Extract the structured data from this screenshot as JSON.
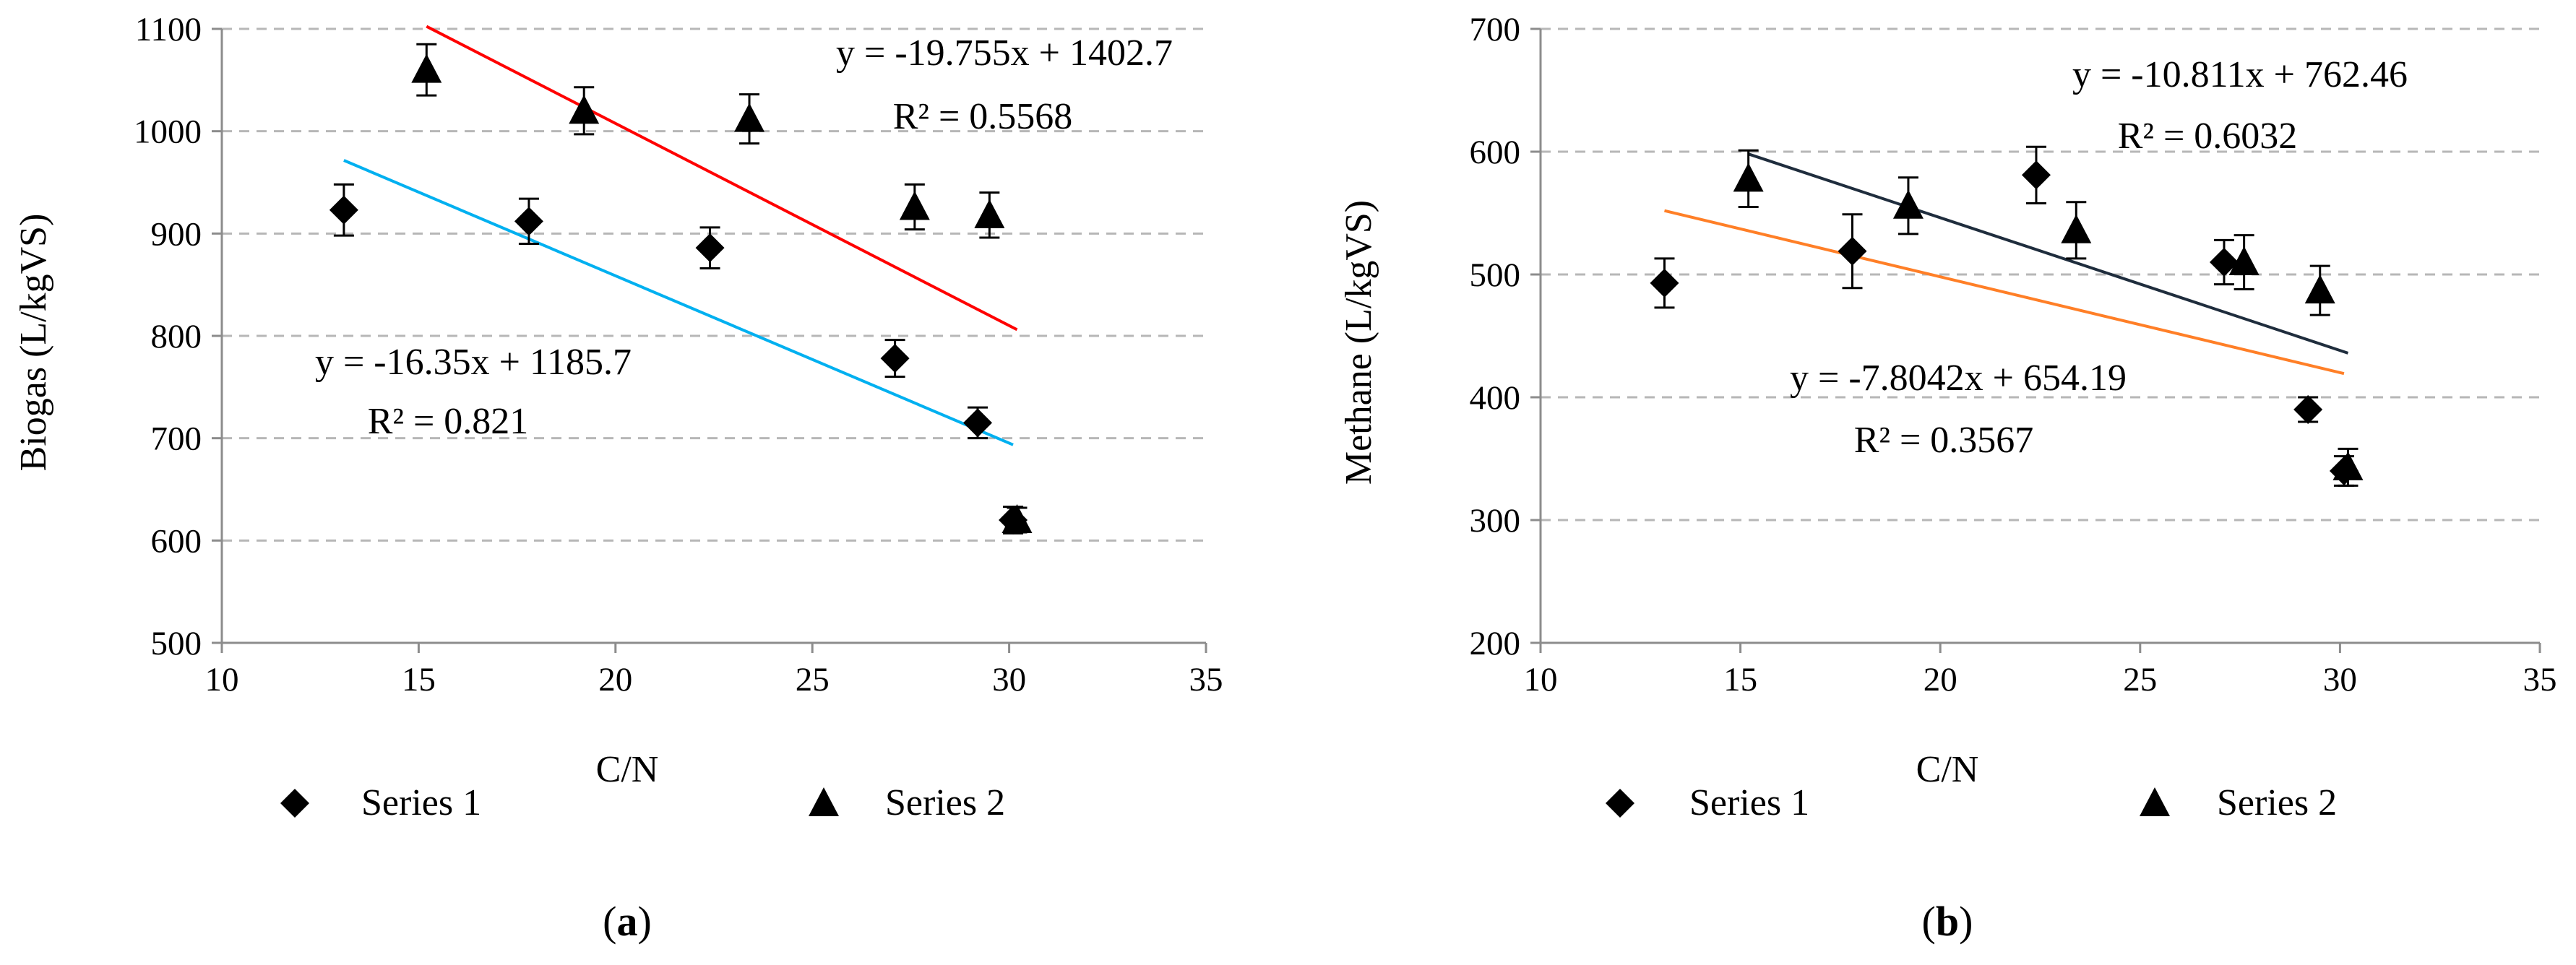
{
  "chart_data": [
    {
      "type": "scatter",
      "panel_caption": {
        "open": "(",
        "letter": "a",
        "close": ")"
      },
      "xlabel": "C/N",
      "ylabel": "Biogas (L/kgVS)",
      "xlim": [
        10,
        35
      ],
      "ylim": [
        500,
        1100
      ],
      "xticks": [
        10,
        15,
        20,
        25,
        30,
        35
      ],
      "yticks": [
        500,
        600,
        700,
        800,
        900,
        1000,
        1100
      ],
      "grid": "horizontal dashed",
      "series": [
        {
          "name": "Series 1",
          "marker": "diamond",
          "x": [
            13.1,
            17.8,
            22.4,
            27.1,
            29.2,
            30.1
          ],
          "y": [
            923,
            912,
            886,
            778,
            715,
            620
          ],
          "err": [
            25,
            22,
            20,
            18,
            15,
            13
          ]
        },
        {
          "name": "Series 2",
          "marker": "triangle",
          "x": [
            15.2,
            19.2,
            23.4,
            27.6,
            29.5,
            30.2
          ],
          "y": [
            1060,
            1020,
            1012,
            926,
            918,
            620
          ],
          "err": [
            25,
            23,
            24,
            22,
            22,
            12
          ]
        }
      ],
      "trendlines": [
        {
          "series": "Series 1",
          "color": "#00b0f0",
          "slope": -16.35,
          "intercept": 1185.7,
          "x_range": [
            13.1,
            30.1
          ],
          "equation": "y = -16.35x + 1185.7",
          "r2": "R² = 0.821"
        },
        {
          "series": "Series 2",
          "color": "#ff0000",
          "slope": -19.755,
          "intercept": 1402.7,
          "x_range": [
            15.2,
            30.2
          ],
          "equation": "y = -19.755x + 1402.7",
          "r2": "R² = 0.5568"
        }
      ],
      "legend": {
        "placement": "bottom"
      }
    },
    {
      "type": "scatter",
      "panel_caption": {
        "open": "(",
        "letter": "b",
        "close": ")"
      },
      "xlabel": "C/N",
      "ylabel": "Methane (L/kgVS)",
      "xlim": [
        10,
        35
      ],
      "ylim": [
        200,
        700
      ],
      "xticks": [
        10,
        15,
        20,
        25,
        30,
        35
      ],
      "yticks": [
        200,
        300,
        400,
        500,
        600,
        700
      ],
      "grid": "horizontal dashed",
      "series": [
        {
          "name": "Series 1",
          "marker": "diamond",
          "x": [
            13.1,
            17.8,
            22.4,
            27.1,
            29.2,
            30.1
          ],
          "y": [
            493,
            519,
            581,
            510,
            390,
            340
          ],
          "err": [
            20,
            30,
            23,
            18,
            10,
            12
          ]
        },
        {
          "name": "Series 2",
          "marker": "triangle",
          "x": [
            15.2,
            19.2,
            23.4,
            27.6,
            29.5,
            30.2
          ],
          "y": [
            578,
            556,
            536,
            510,
            487,
            343
          ],
          "err": [
            23,
            23,
            23,
            22,
            20,
            15
          ]
        }
      ],
      "trendlines": [
        {
          "series": "Series 1",
          "color": "#ff7f27",
          "slope": -7.8042,
          "intercept": 654.19,
          "x_range": [
            13.1,
            30.1
          ],
          "equation": "y = -7.8042x + 654.19",
          "r2": "R² = 0.3567"
        },
        {
          "series": "Series 2",
          "color": "#1f2d3d",
          "slope": -10.811,
          "intercept": 762.46,
          "x_range": [
            15.2,
            30.2
          ],
          "equation": "y = -10.811x + 762.46",
          "r2": "R² = 0.6032"
        }
      ],
      "legend": {
        "placement": "bottom"
      }
    }
  ]
}
